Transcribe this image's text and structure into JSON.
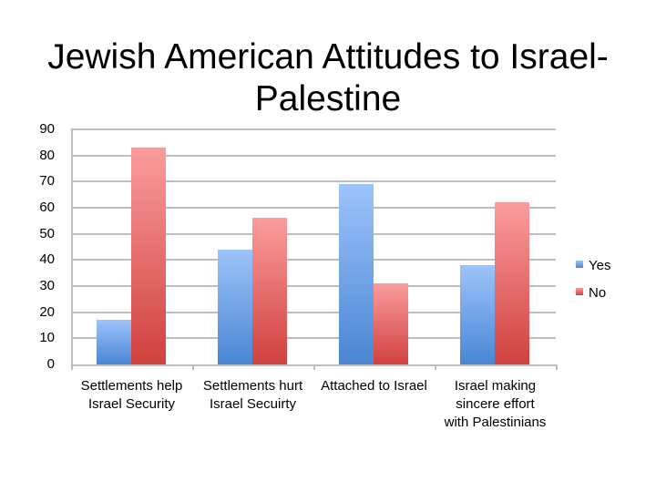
{
  "chart_data": {
    "type": "bar",
    "title": "Jewish American Attitudes to Israel-Palestine",
    "title_lines": [
      "Jewish American Attitudes to Israel-",
      "Palestine"
    ],
    "categories": [
      "Settlements help Israel Security",
      "Settlements hurt Israel Secuirty",
      "Attached to Israel",
      "Israel making sincere effort with Palestinians"
    ],
    "category_lines": [
      [
        "Settlements help",
        "Israel Security"
      ],
      [
        "Settlements hurt",
        "Israel Secuirty"
      ],
      [
        "Attached to Israel"
      ],
      [
        "Israel making",
        "sincere effort",
        "with Palestinians"
      ]
    ],
    "series": [
      {
        "name": "Yes",
        "color": "#4a86d3",
        "values": [
          17,
          44,
          69,
          38
        ]
      },
      {
        "name": "No",
        "color": "#d0413f",
        "values": [
          83,
          56,
          31,
          62
        ]
      }
    ],
    "xlabel": "",
    "ylabel": "",
    "ylim": [
      0,
      90
    ],
    "yticks": [
      "0",
      "10",
      "20",
      "30",
      "40",
      "50",
      "60",
      "70",
      "80",
      "90"
    ],
    "grid": true,
    "legend_position": "right"
  }
}
